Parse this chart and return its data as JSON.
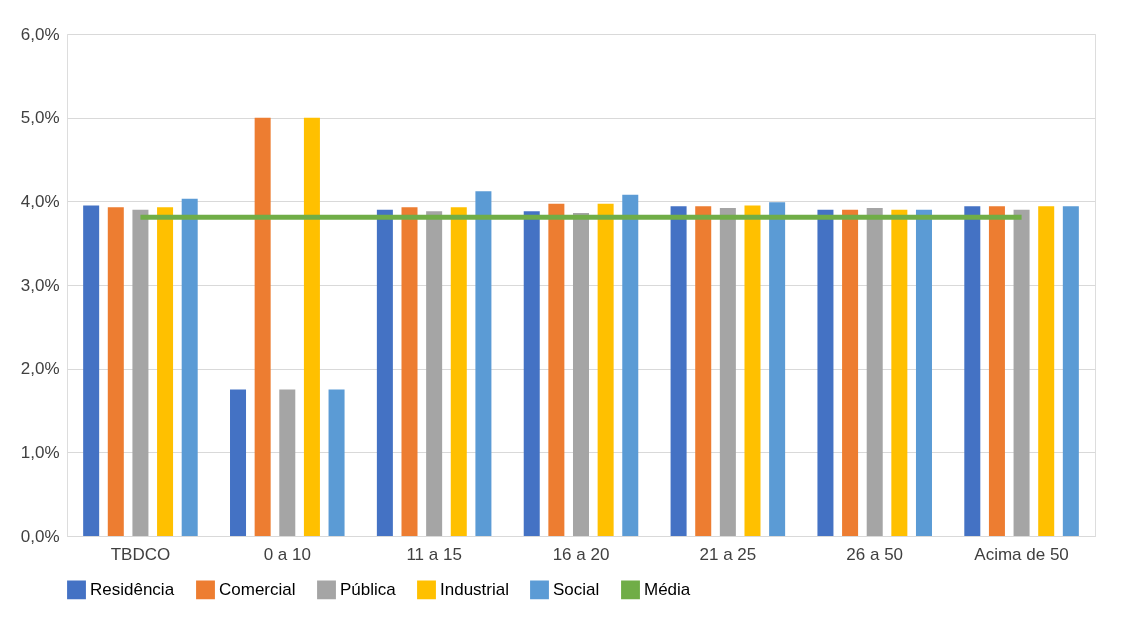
{
  "chart_data": {
    "type": "bar",
    "categories": [
      "TBDCO",
      "0 a 10",
      "11 a 15",
      "16 a 20",
      "21 a 25",
      "26 a 50",
      "Acima de 50"
    ],
    "series": [
      {
        "name": "Residência",
        "color": "#4472c4",
        "values": [
          3.95,
          1.75,
          3.9,
          3.88,
          3.94,
          3.9,
          3.94
        ]
      },
      {
        "name": "Comercial",
        "color": "#ed7d31",
        "values": [
          3.93,
          5.0,
          3.93,
          3.97,
          3.94,
          3.9,
          3.94
        ]
      },
      {
        "name": "Pública",
        "color": "#a5a5a5",
        "values": [
          3.9,
          1.75,
          3.88,
          3.86,
          3.92,
          3.92,
          3.9
        ]
      },
      {
        "name": "Industrial",
        "color": "#ffc000",
        "values": [
          3.93,
          5.0,
          3.93,
          3.97,
          3.95,
          3.9,
          3.94
        ]
      },
      {
        "name": "Social",
        "color": "#5b9bd5",
        "values": [
          4.03,
          1.75,
          4.12,
          4.08,
          3.99,
          3.9,
          3.94
        ]
      },
      {
        "name": "Média",
        "color": "#70ad47",
        "type": "line",
        "values": [
          3.81,
          3.81,
          3.81,
          3.81,
          3.81,
          3.81,
          3.81
        ]
      }
    ],
    "ylim": [
      0,
      6
    ],
    "yticks": [
      {
        "value": 0,
        "label": "0,0%"
      },
      {
        "value": 1,
        "label": "1,0%"
      },
      {
        "value": 2,
        "label": "2,0%"
      },
      {
        "value": 3,
        "label": "3,0%"
      },
      {
        "value": 4,
        "label": "4,0%"
      },
      {
        "value": 5,
        "label": "5,0%"
      },
      {
        "value": 6,
        "label": "6,0%"
      }
    ],
    "grid": "y",
    "legend": "bottom",
    "marker": "none"
  }
}
